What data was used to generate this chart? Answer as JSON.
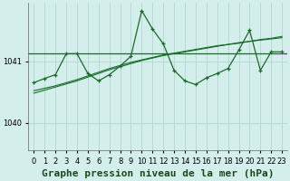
{
  "background_color": "#d4eeeb",
  "grid_color": "#b0d8d0",
  "line_color": "#1a6b2a",
  "title": "Graphe pression niveau de la mer (hPa)",
  "xlim": [
    -0.5,
    23.5
  ],
  "ylim": [
    1039.55,
    1041.95
  ],
  "yticks": [
    1040,
    1041
  ],
  "xticks": [
    0,
    1,
    2,
    3,
    4,
    5,
    6,
    7,
    8,
    9,
    10,
    11,
    12,
    13,
    14,
    15,
    16,
    17,
    18,
    19,
    20,
    21,
    22,
    23
  ],
  "hline_y": 1041.12,
  "smooth1_x": [
    0,
    1,
    2,
    3,
    4,
    5,
    6,
    7,
    8,
    9,
    10,
    11,
    12,
    13,
    14,
    15,
    16,
    17,
    18,
    19,
    20,
    21,
    22,
    23
  ],
  "smooth1_y": [
    1040.52,
    1040.56,
    1040.6,
    1040.65,
    1040.7,
    1040.76,
    1040.82,
    1040.88,
    1040.93,
    1040.98,
    1041.02,
    1041.06,
    1041.1,
    1041.13,
    1041.16,
    1041.19,
    1041.22,
    1041.25,
    1041.27,
    1041.3,
    1041.32,
    1041.35,
    1041.37,
    1041.4
  ],
  "smooth2_x": [
    0,
    1,
    2,
    3,
    4,
    5,
    6,
    7,
    8,
    9,
    10,
    11,
    12,
    13,
    14,
    15,
    16,
    17,
    18,
    19,
    20,
    21,
    22,
    23
  ],
  "smooth2_y": [
    1040.48,
    1040.53,
    1040.58,
    1040.63,
    1040.68,
    1040.74,
    1040.8,
    1040.86,
    1040.91,
    1040.96,
    1041.01,
    1041.05,
    1041.09,
    1041.12,
    1041.15,
    1041.18,
    1041.21,
    1041.24,
    1041.27,
    1041.29,
    1041.32,
    1041.34,
    1041.36,
    1041.38
  ],
  "jagged_x": [
    0,
    1,
    2,
    3,
    4,
    5,
    6,
    7,
    8,
    9,
    10,
    11,
    12,
    13,
    14,
    15,
    16,
    17,
    18,
    19,
    20,
    21,
    22,
    23
  ],
  "jagged_y": [
    1040.65,
    1040.72,
    1040.78,
    1041.12,
    1041.12,
    1040.8,
    1040.68,
    1040.78,
    1040.92,
    1041.08,
    1041.82,
    1041.52,
    1041.28,
    1040.85,
    1040.68,
    1040.62,
    1040.73,
    1040.8,
    1040.88,
    1041.18,
    1041.5,
    1040.85,
    1041.15,
    1041.15
  ],
  "title_fontsize": 8,
  "tick_fontsize": 6
}
